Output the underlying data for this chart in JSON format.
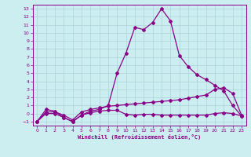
{
  "xlabel": "Windchill (Refroidissement éolien,°C)",
  "xlim": [
    -0.5,
    23.5
  ],
  "ylim": [
    -1.5,
    13.5
  ],
  "yticks": [
    -1,
    0,
    1,
    2,
    3,
    4,
    5,
    6,
    7,
    8,
    9,
    10,
    11,
    12,
    13
  ],
  "xticks": [
    0,
    1,
    2,
    3,
    4,
    5,
    6,
    7,
    8,
    9,
    10,
    11,
    12,
    13,
    14,
    15,
    16,
    17,
    18,
    19,
    20,
    21,
    22,
    23
  ],
  "bg_color": "#cceef0",
  "grid_color": "#aad4dc",
  "line_color": "#880088",
  "line1_x": [
    0,
    1,
    2,
    3,
    4,
    5,
    6,
    7,
    8,
    9,
    10,
    11,
    12,
    13,
    14,
    15,
    16,
    17,
    18,
    19,
    20,
    21,
    22,
    23
  ],
  "line1_y": [
    -1,
    0.5,
    0.3,
    -0.5,
    -1.0,
    -0.2,
    0.3,
    0.5,
    1.0,
    5.0,
    7.5,
    10.7,
    10.4,
    11.3,
    13.0,
    11.5,
    7.2,
    5.8,
    4.8,
    4.2,
    3.5,
    2.8,
    1.0,
    -0.3
  ],
  "line2_x": [
    0,
    1,
    2,
    3,
    4,
    5,
    6,
    7,
    8,
    9,
    10,
    11,
    12,
    13,
    14,
    15,
    16,
    17,
    18,
    19,
    20,
    21,
    22,
    23
  ],
  "line2_y": [
    -1,
    0.2,
    0.2,
    -0.2,
    -0.8,
    0.2,
    0.5,
    0.7,
    0.9,
    1.0,
    1.1,
    1.2,
    1.3,
    1.4,
    1.5,
    1.6,
    1.7,
    1.9,
    2.1,
    2.3,
    3.0,
    3.2,
    2.5,
    -0.2
  ],
  "line3_x": [
    0,
    1,
    2,
    3,
    4,
    5,
    6,
    7,
    8,
    9,
    10,
    11,
    12,
    13,
    14,
    15,
    16,
    17,
    18,
    19,
    20,
    21,
    22,
    23
  ],
  "line3_y": [
    -1,
    0.0,
    0.0,
    -0.5,
    -1.0,
    -0.2,
    0.1,
    0.3,
    0.4,
    0.4,
    -0.1,
    -0.2,
    -0.1,
    -0.1,
    -0.2,
    -0.2,
    -0.2,
    -0.2,
    -0.2,
    -0.2,
    0.0,
    0.1,
    0.0,
    -0.3
  ]
}
